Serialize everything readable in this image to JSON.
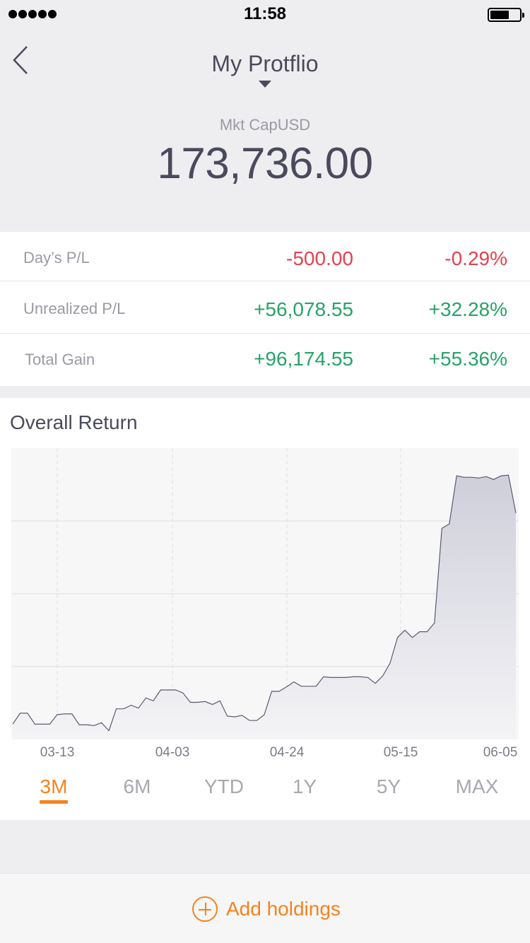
{
  "status_bar": {
    "time": "11:58"
  },
  "header": {
    "title": "My Protflio",
    "mkt_label": "Mkt CapUSD",
    "mkt_value": "173,736.00"
  },
  "pl_rows": [
    {
      "label": "Day’s P/L",
      "value": "-500.00",
      "percent": "-0.29%",
      "trend": "negative"
    },
    {
      "label": "Unrealized P/L",
      "value": "+56,078.55",
      "percent": "+32.28%",
      "trend": "positive"
    },
    {
      "label": "Total Gain",
      "value": "+96,174.55",
      "percent": "+55.36%",
      "trend": "positive"
    }
  ],
  "chart": {
    "title": "Overall Return"
  },
  "chart_data": {
    "type": "area",
    "title": "Overall Return",
    "xlabel": "",
    "ylabel": "",
    "x_ticks": [
      "03-13",
      "04-03",
      "04-24",
      "05-15",
      "06-05"
    ],
    "grid": true,
    "series": [
      {
        "values": [
          0.21,
          0.36,
          0.36,
          0.21,
          0.21,
          0.21,
          0.34,
          0.35,
          0.35,
          0.2,
          0.2,
          0.19,
          0.23,
          0.12,
          0.42,
          0.42,
          0.47,
          0.43,
          0.57,
          0.53,
          0.68,
          0.68,
          0.68,
          0.64,
          0.51,
          0.51,
          0.52,
          0.48,
          0.53,
          0.32,
          0.31,
          0.33,
          0.26,
          0.26,
          0.34,
          0.66,
          0.66,
          0.72,
          0.79,
          0.73,
          0.73,
          0.73,
          0.86,
          0.85,
          0.85,
          0.85,
          0.86,
          0.86,
          0.85,
          0.77,
          0.87,
          1.05,
          1.4,
          1.5,
          1.4,
          1.48,
          1.48,
          1.6,
          2.9,
          2.96,
          3.62,
          3.6,
          3.6,
          3.59,
          3.61,
          3.57,
          3.62,
          3.63,
          3.11
        ]
      }
    ]
  },
  "range_tabs": {
    "active": 0,
    "items": [
      "3M",
      "6M",
      "YTD",
      "1Y",
      "5Y",
      "MAX"
    ]
  },
  "footer": {
    "add_label": "Add holdings"
  },
  "colors": {
    "accent": "#f5821f",
    "negative": "#e5414f",
    "positive": "#26a368",
    "line": "#5a5a72",
    "area_top": "#cfcfdb",
    "area_bottom": "#f4f4f6"
  }
}
